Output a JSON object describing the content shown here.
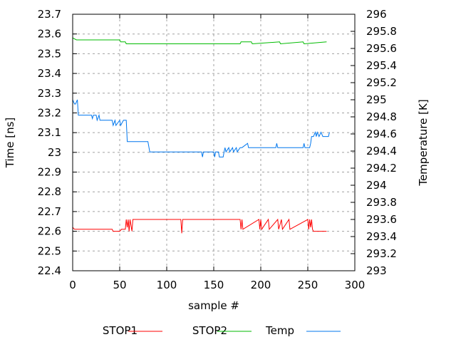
{
  "chart_data": {
    "type": "line",
    "xlabel": "sample #",
    "ylabel": "Time [ns]",
    "y2label": "Temperature [K]",
    "xlim": [
      0,
      300
    ],
    "ylim": [
      22.4,
      23.7
    ],
    "y2lim": [
      293,
      296
    ],
    "grid": true,
    "legend_position": "bottom",
    "x_ticks": [
      "0",
      "50",
      "100",
      "150",
      "200",
      "250",
      "300"
    ],
    "y_ticks": [
      "22.4",
      "22.5",
      "22.6",
      "22.7",
      "22.8",
      "22.9",
      "23",
      "23.1",
      "23.2",
      "23.3",
      "23.4",
      "23.5",
      "23.6",
      "23.7"
    ],
    "y2_ticks": [
      "293",
      "293.2",
      "293.4",
      "293.6",
      "293.8",
      "294",
      "294.2",
      "294.4",
      "294.6",
      "294.8",
      "295",
      "295.2",
      "295.4",
      "295.6",
      "295.8",
      "296"
    ],
    "series": [
      {
        "name": "STOP1",
        "axis": "y",
        "color": "#ff0000",
        "x": [
          0,
          2,
          42,
          43,
          50,
          52,
          56,
          57,
          58,
          59,
          60,
          61,
          63,
          64,
          115,
          116,
          117,
          178,
          179,
          180,
          181,
          198,
          199,
          200,
          201,
          208,
          209,
          218,
          219,
          222,
          223,
          230,
          231,
          250,
          251,
          252,
          253,
          254,
          255,
          256,
          270
        ],
        "y": [
          22.62,
          22.61,
          22.61,
          22.6,
          22.6,
          22.61,
          22.61,
          22.66,
          22.62,
          22.66,
          22.6,
          22.66,
          22.6,
          22.66,
          22.66,
          22.59,
          22.66,
          22.66,
          22.61,
          22.66,
          22.61,
          22.66,
          22.61,
          22.66,
          22.61,
          22.66,
          22.61,
          22.66,
          22.61,
          22.66,
          22.61,
          22.66,
          22.61,
          22.66,
          22.61,
          22.66,
          22.62,
          22.66,
          22.61,
          22.6,
          22.6
        ]
      },
      {
        "name": "STOP2",
        "axis": "y",
        "color": "#00bb00",
        "x": [
          0,
          4,
          50,
          51,
          56,
          57,
          178,
          179,
          190,
          191,
          220,
          221,
          245,
          246,
          270
        ],
        "y": [
          23.58,
          23.57,
          23.57,
          23.56,
          23.56,
          23.55,
          23.55,
          23.56,
          23.56,
          23.55,
          23.56,
          23.55,
          23.56,
          23.55,
          23.56
        ]
      },
      {
        "name": "Temp",
        "axis": "y2",
        "color": "#0077ee",
        "x": [
          0,
          2,
          3,
          5,
          6,
          20,
          21,
          22,
          25,
          26,
          28,
          29,
          34,
          35,
          42,
          43,
          45,
          46,
          50,
          51,
          54,
          55,
          57,
          58,
          80,
          82,
          137,
          138,
          139,
          150,
          151,
          152,
          155,
          156,
          160,
          161,
          162,
          163,
          166,
          167,
          170,
          171,
          174,
          175,
          178,
          180,
          186,
          187,
          188,
          216,
          217,
          218,
          245,
          246,
          247,
          248,
          252,
          253,
          254,
          256,
          258,
          259,
          260,
          262,
          264,
          266,
          268,
          272,
          273
        ],
        "y": [
          295.0,
          294.95,
          294.95,
          295.0,
          294.82,
          294.82,
          294.78,
          294.82,
          294.82,
          294.76,
          294.82,
          294.76,
          294.76,
          294.76,
          294.76,
          294.7,
          294.76,
          294.7,
          294.76,
          294.7,
          294.76,
          294.76,
          294.76,
          294.51,
          294.51,
          294.39,
          294.39,
          294.33,
          294.39,
          294.39,
          294.33,
          294.39,
          294.39,
          294.33,
          294.33,
          294.39,
          294.44,
          294.39,
          294.44,
          294.39,
          294.44,
          294.39,
          294.44,
          294.39,
          294.44,
          294.44,
          294.49,
          294.44,
          294.44,
          294.44,
          294.49,
          294.44,
          294.44,
          294.49,
          294.44,
          294.44,
          294.44,
          294.49,
          294.57,
          294.57,
          294.62,
          294.57,
          294.62,
          294.57,
          294.62,
          294.57,
          294.57,
          294.57,
          294.62
        ]
      }
    ]
  }
}
